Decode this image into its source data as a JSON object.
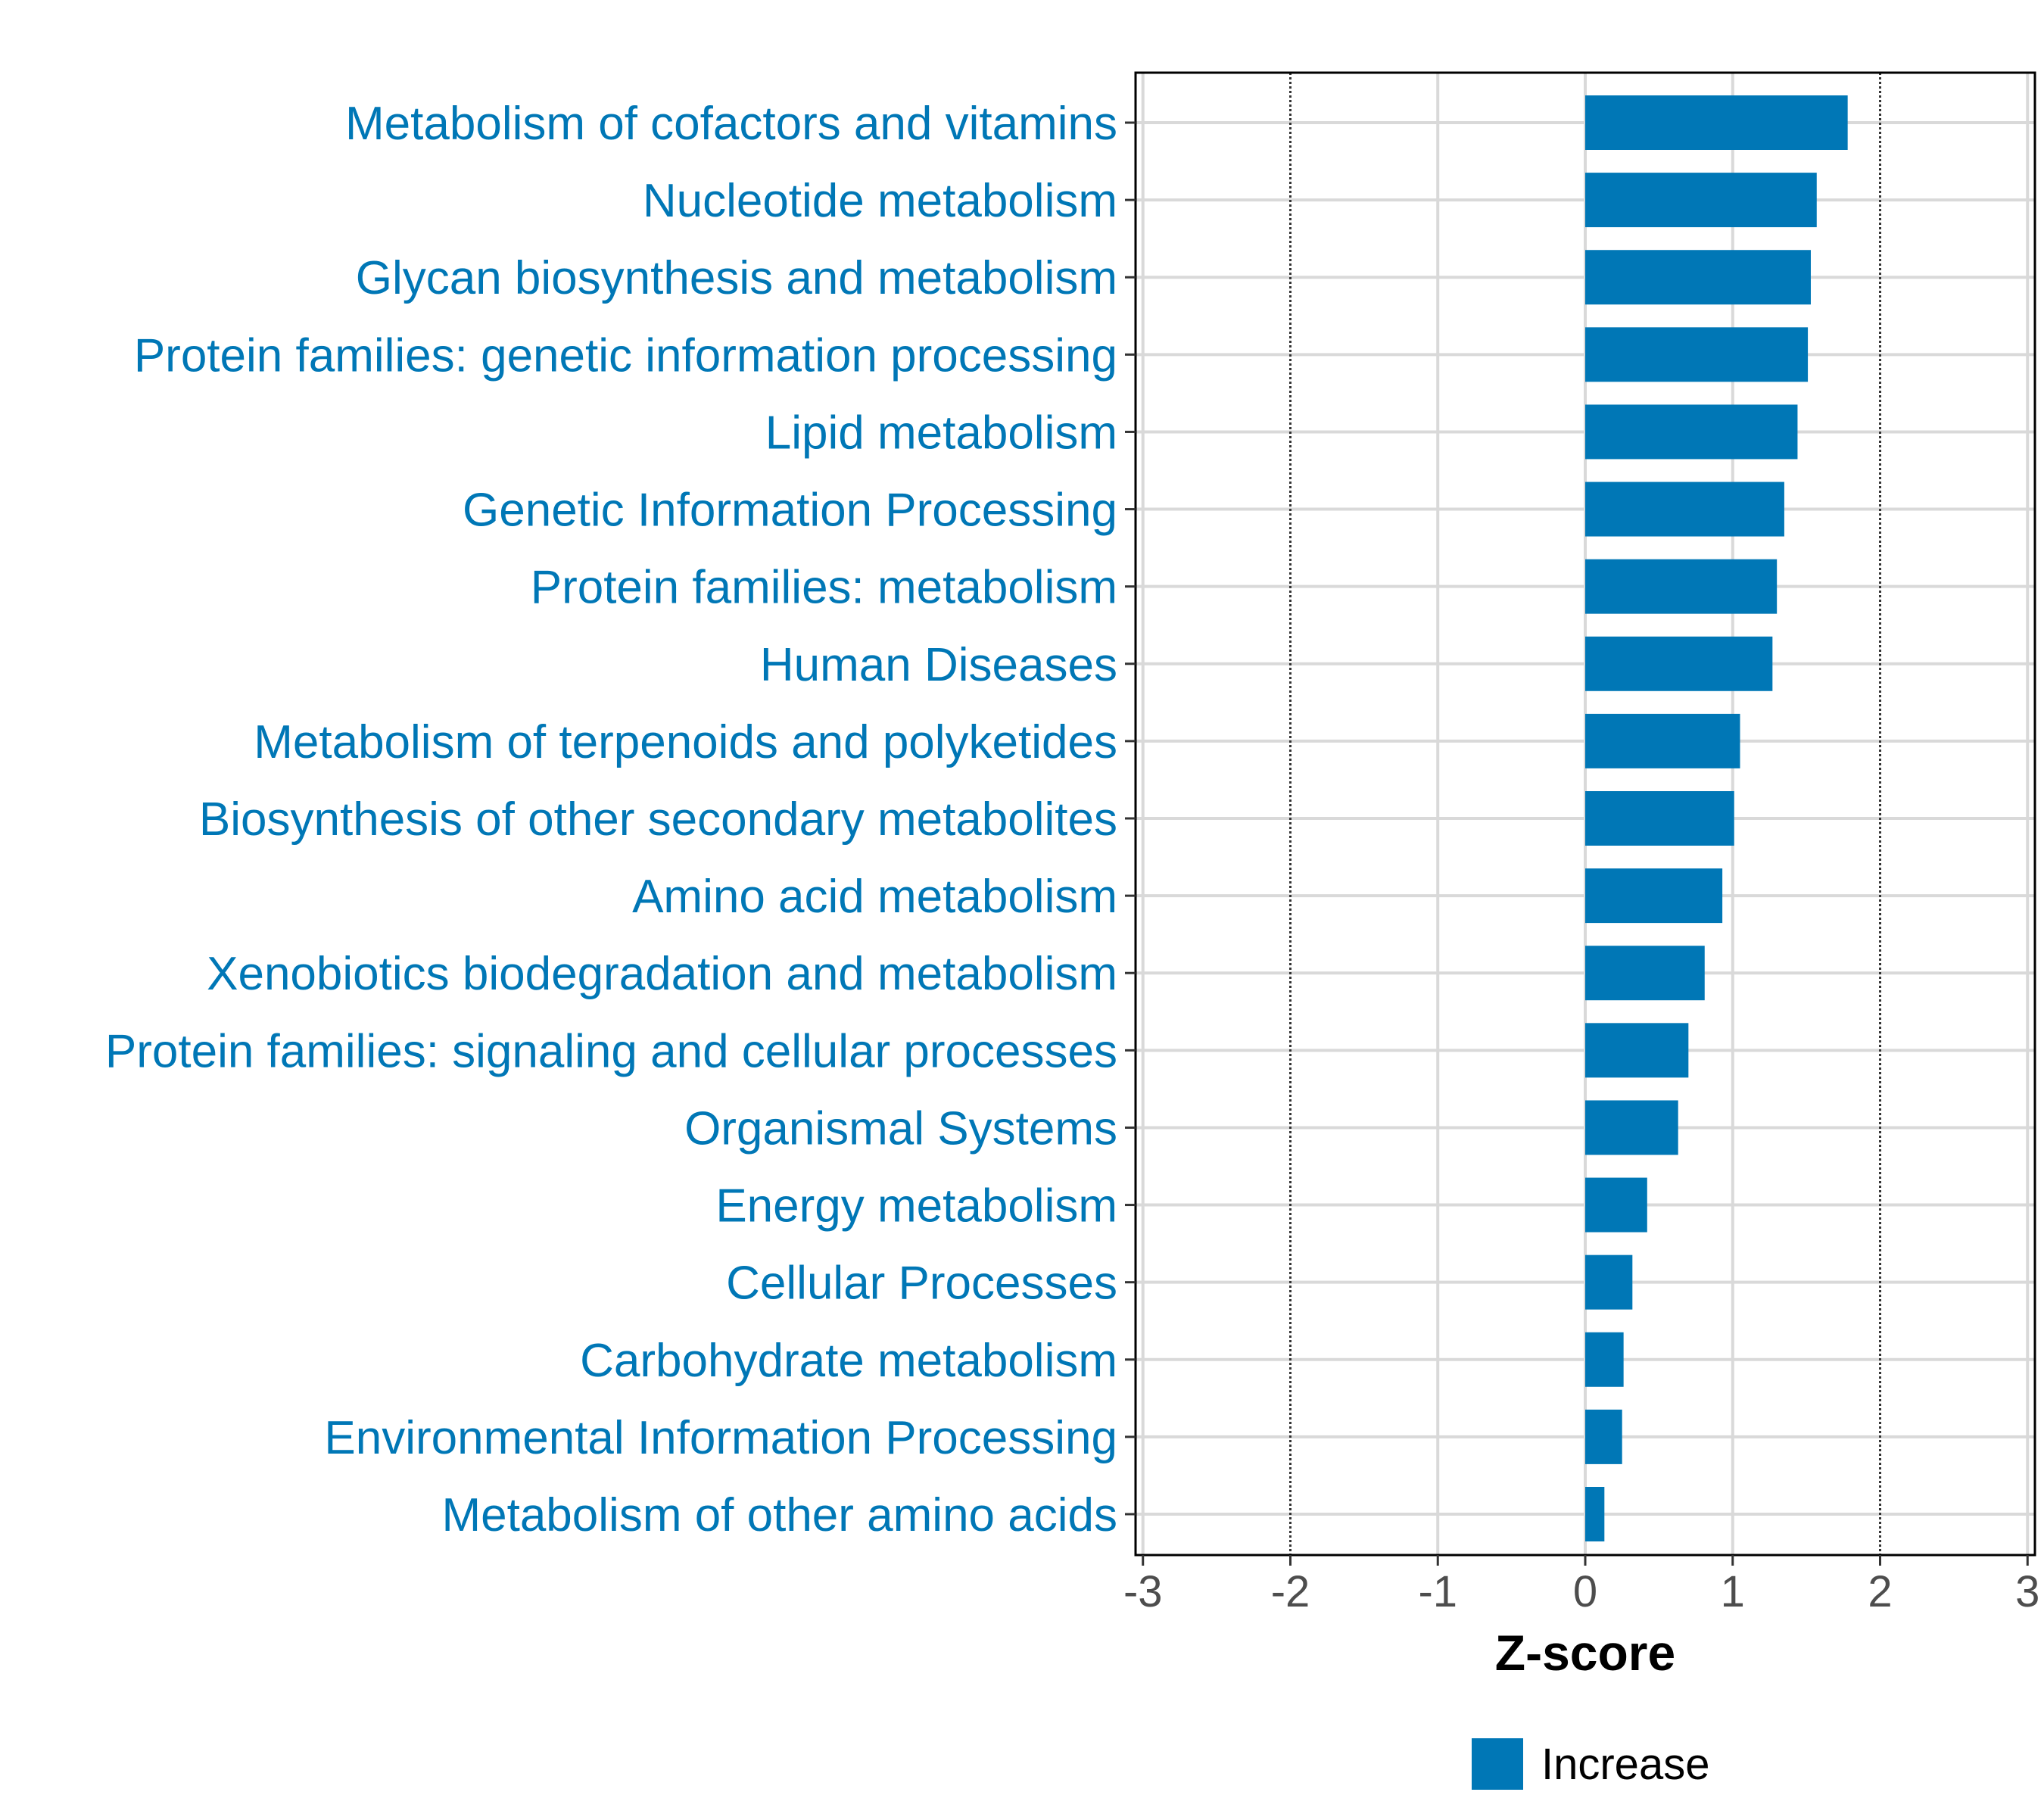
{
  "chart_data": {
    "type": "bar",
    "orientation": "horizontal",
    "categories": [
      "Metabolism of cofactors and vitamins",
      "Nucleotide metabolism",
      "Glycan biosynthesis and metabolism",
      "Protein families: genetic information processing",
      "Lipid metabolism",
      "Genetic Information Processing",
      "Protein families: metabolism",
      "Human Diseases",
      "Metabolism of terpenoids and polyketides",
      "Biosynthesis of other secondary metabolites",
      "Amino acid metabolism",
      "Xenobiotics biodegradation and metabolism",
      "Protein families: signaling and cellular processes",
      "Organismal Systems",
      "Energy metabolism",
      "Cellular Processes",
      "Carbohydrate metabolism",
      "Environmental Information Processing",
      "Metabolism of other amino acids"
    ],
    "values": [
      1.78,
      1.57,
      1.53,
      1.51,
      1.44,
      1.35,
      1.3,
      1.27,
      1.05,
      1.01,
      0.93,
      0.81,
      0.7,
      0.63,
      0.42,
      0.32,
      0.26,
      0.25,
      0.13
    ],
    "series_name": "Increase",
    "xlabel": "Z-score",
    "ylabel": "",
    "xlim": [
      -3.05,
      3.05
    ],
    "xticks": [
      "-3",
      "-2",
      "-1",
      "0",
      "1",
      "2",
      "3"
    ],
    "xtick_values": [
      -3,
      -2,
      -1,
      0,
      1,
      2,
      3
    ],
    "reference_lines": [
      -2,
      2
    ],
    "grid": true,
    "legend": {
      "position": "bottom",
      "entries": [
        "Increase"
      ]
    },
    "colors": {
      "bar": "#0077b6",
      "label": "#0077b6",
      "grid": "#d9d9d9",
      "refline": "#333333"
    }
  }
}
